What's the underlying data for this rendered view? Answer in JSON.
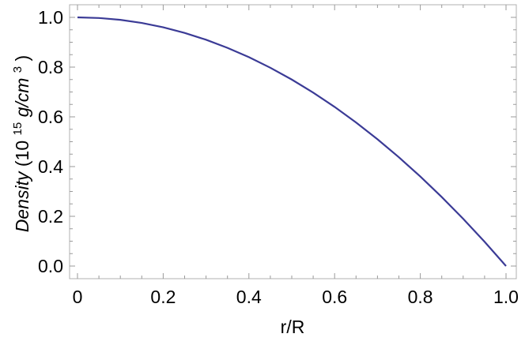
{
  "chart_data": {
    "type": "line",
    "xlabel": "r/R",
    "ylabel": {
      "italic": "Density",
      "prefix": " (10",
      "exp1": "15",
      "unit_italic": "g/cm",
      "exp2": "3",
      "suffix": ")"
    },
    "xlim": [
      0,
      1.0
    ],
    "ylim": [
      -0.05,
      1.05
    ],
    "x_ticks": [
      0,
      0.2,
      0.4,
      0.6,
      0.8,
      1.0
    ],
    "x_tick_labels": [
      "0",
      "0.2",
      "0.4",
      "0.6",
      "0.8",
      "1.0"
    ],
    "y_ticks": [
      0.0,
      0.2,
      0.4,
      0.6,
      0.8,
      1.0
    ],
    "y_tick_labels": [
      "0.0",
      "0.2",
      "0.4",
      "0.6",
      "0.8",
      "1.0"
    ],
    "grid": false,
    "series": [
      {
        "color": "#3b3b96",
        "x": [
          0,
          0.05,
          0.1,
          0.15,
          0.2,
          0.25,
          0.3,
          0.35,
          0.4,
          0.45,
          0.5,
          0.55,
          0.6,
          0.65,
          0.7,
          0.75,
          0.8,
          0.85,
          0.9,
          0.95,
          1.0
        ],
        "values": [
          1.0,
          0.9975,
          0.99,
          0.9775,
          0.96,
          0.9375,
          0.91,
          0.8775,
          0.84,
          0.7975,
          0.75,
          0.6975,
          0.64,
          0.5775,
          0.51,
          0.4375,
          0.36,
          0.2775,
          0.19,
          0.0975,
          0.0
        ]
      }
    ]
  }
}
